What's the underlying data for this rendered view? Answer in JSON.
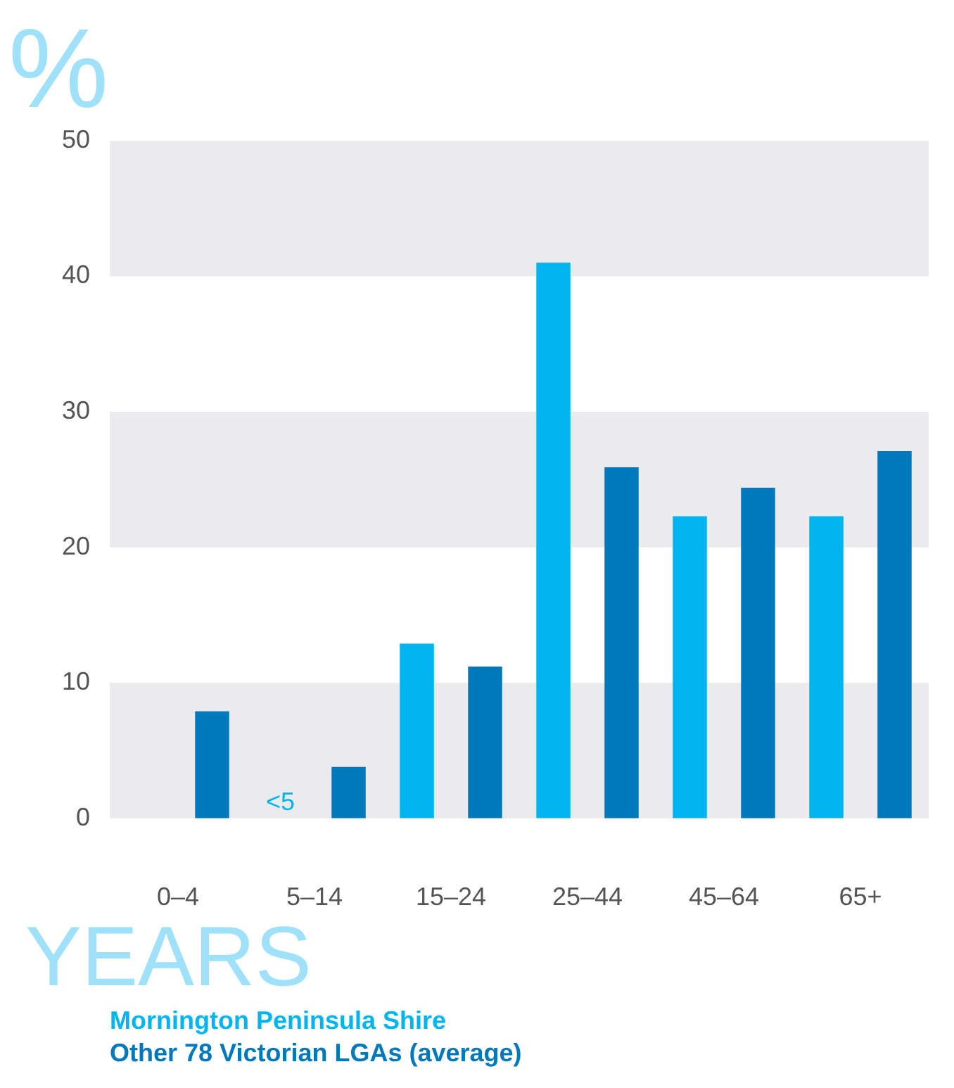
{
  "chart_data": {
    "type": "bar",
    "ylabel": "%",
    "xlabel": "YEARS",
    "categories": [
      "0–4",
      "5–14",
      "15–24",
      "25–44",
      "45–64",
      "65+"
    ],
    "series": [
      {
        "name": "Mornington Peninsula Shire",
        "color": "#00b5ef",
        "values": [
          null,
          null,
          12.9,
          41.0,
          22.3,
          22.3
        ],
        "value_labels": [
          null,
          "<5",
          null,
          null,
          null,
          null
        ]
      },
      {
        "name": "Other 78 Victorian LGAs (average)",
        "color": "#0079bc",
        "values": [
          7.9,
          3.8,
          11.2,
          25.9,
          24.4,
          27.1
        ]
      }
    ],
    "ylim": [
      0,
      50
    ],
    "yticks": [
      0,
      10,
      20,
      30,
      40,
      50
    ],
    "grid": false,
    "legend": "bottom",
    "bands": [
      {
        "axis": "y",
        "from": 0,
        "to": 10,
        "color": "#ebebed"
      },
      {
        "axis": "y",
        "from": 20,
        "to": 30,
        "color": "#ebebed"
      },
      {
        "axis": "y",
        "from": 40,
        "to": 50,
        "color": "#ebebed"
      }
    ]
  }
}
